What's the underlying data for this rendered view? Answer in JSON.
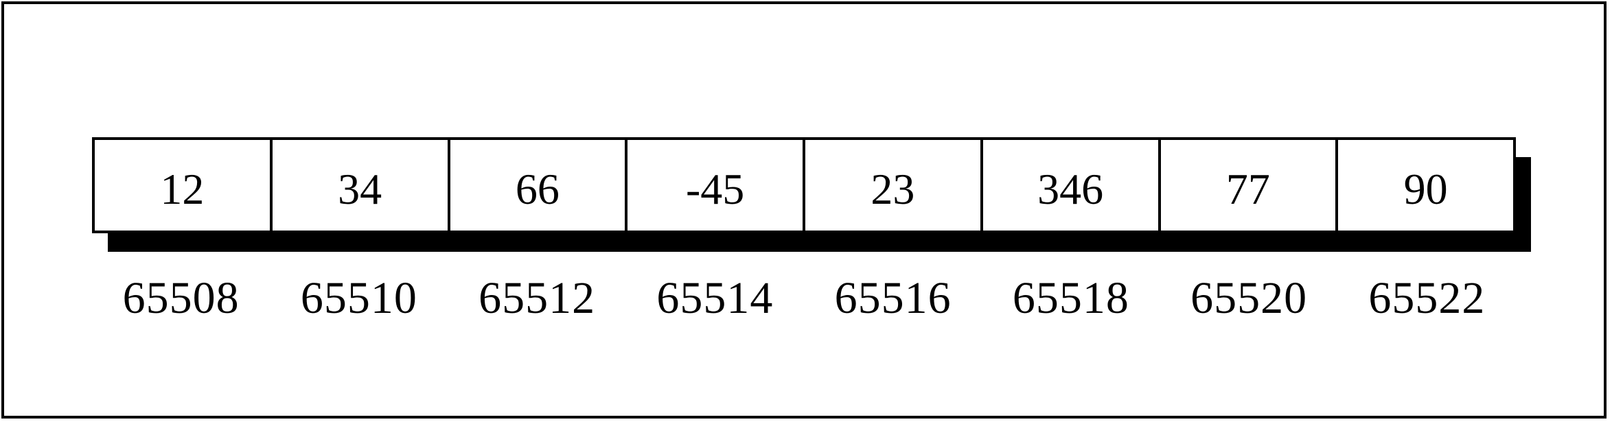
{
  "memory": {
    "values": [
      "12",
      "34",
      "66",
      "-45",
      "23",
      "346",
      "77",
      "90"
    ],
    "addresses": [
      "65508",
      "65510",
      "65512",
      "65514",
      "65516",
      "65518",
      "65520",
      "65522"
    ]
  }
}
